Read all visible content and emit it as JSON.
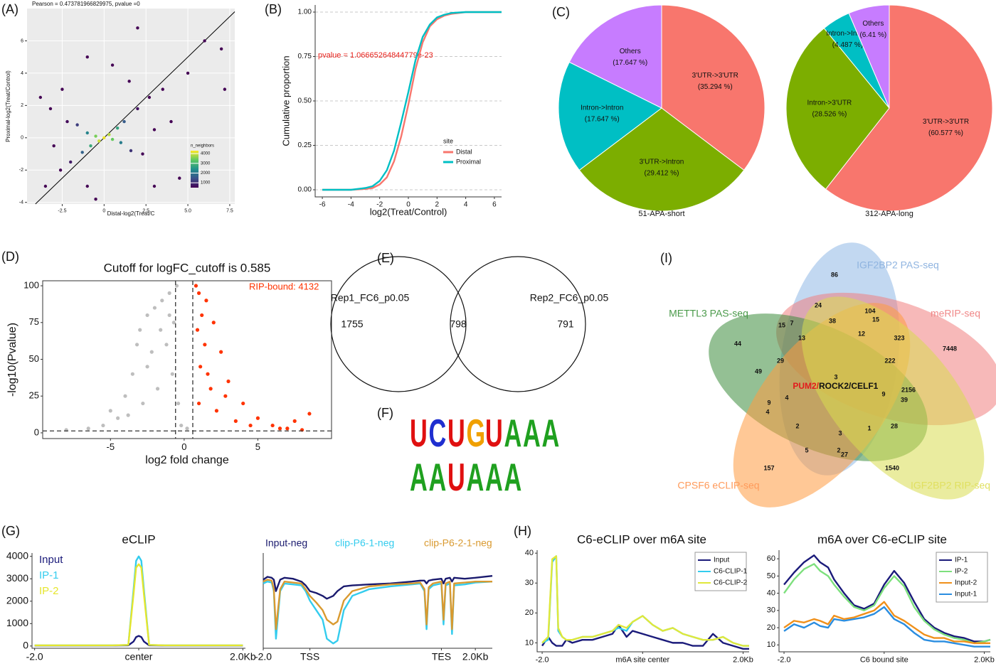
{
  "chart_data": [
    {
      "type": "scatter",
      "panel": "(A)",
      "title": "Pearson = 0.473781966829975, pvalue =0",
      "xlabel": "Distal-log2(Treat/C",
      "ylabel": "Proximal-log2(Treat/Control)",
      "x": [
        0,
        -0.3,
        0.3,
        -0.5,
        0.5,
        -0.8,
        0.8,
        -1,
        1,
        -1.3,
        1.2,
        -1.6,
        1.6,
        -2,
        2,
        -2.2,
        2.3,
        -2.6,
        2.7,
        3,
        -3,
        3.5,
        -3.2,
        1.5,
        -1,
        4,
        -3.5,
        5,
        0.5,
        -0.5,
        6,
        7,
        7.2,
        5.5,
        -3.8,
        2,
        -1,
        4.5,
        3,
        -2.5
      ],
      "values": [
        0,
        -0.2,
        0.2,
        0.1,
        -0.1,
        -0.5,
        0.6,
        0.3,
        -0.3,
        -0.9,
        1,
        0.8,
        -0.8,
        -1.5,
        1.8,
        1,
        -1,
        -2,
        2.5,
        0.5,
        -0.5,
        3,
        1.8,
        3.5,
        -3,
        1,
        -3,
        4,
        4.5,
        -3.8,
        6,
        5.5,
        3,
        -1.5,
        2.5,
        6.8,
        5,
        -2.5,
        -3,
        3
      ],
      "density": [
        4200,
        4000,
        3900,
        3500,
        3400,
        2800,
        2700,
        2200,
        2100,
        1700,
        1600,
        1200,
        1100,
        800,
        700,
        600,
        550,
        400,
        380,
        300,
        300,
        200,
        150,
        150,
        120,
        100,
        80,
        50,
        60,
        50,
        10,
        10,
        10,
        10,
        10,
        10,
        10,
        20,
        20,
        40
      ],
      "xlim": [
        -4.6,
        7.8
      ],
      "ylim": [
        -4.1,
        8
      ],
      "xticks": [
        -2.5,
        0,
        2.5,
        {
          "value": 5,
          "label": "5.0"
        },
        7.5
      ],
      "yticks": [
        -4,
        -2,
        0,
        2,
        4,
        6
      ],
      "grid": true,
      "background": "#ebebeb",
      "diagonal": true,
      "colorbar": {
        "title": "n_neighbors",
        "ticks": [
          1000,
          2000,
          3000,
          4000
        ],
        "lim": [
          500,
          4300
        ]
      }
    },
    {
      "type": "line",
      "panel": "(B)",
      "xlabel": "log2(Treat/Control)",
      "ylabel": "Cumulative proportion",
      "annotation": "pvalue = 1.06665264844779e-23",
      "annotation_color": "#e8201a",
      "legend_title": "site",
      "legend": "inside-right",
      "x": [
        -6,
        -4,
        -3,
        -2.5,
        -2,
        -1.5,
        -1,
        -0.5,
        0,
        0.5,
        1,
        1.5,
        2,
        2.5,
        3,
        4,
        6.5
      ],
      "series": [
        {
          "name": "Distal",
          "color": "#f8766d",
          "values": [
            0,
            0,
            0.005,
            0.01,
            0.03,
            0.07,
            0.16,
            0.3,
            0.48,
            0.68,
            0.83,
            0.92,
            0.96,
            0.98,
            0.99,
            1,
            1
          ]
        },
        {
          "name": "Proximal",
          "color": "#00bfc4",
          "values": [
            0,
            0,
            0.01,
            0.02,
            0.05,
            0.11,
            0.22,
            0.38,
            0.55,
            0.73,
            0.86,
            0.93,
            0.97,
            0.985,
            0.995,
            1,
            1
          ]
        }
      ],
      "xlim": [
        -6.5,
        6.5
      ],
      "ylim": [
        -0.04,
        1.04
      ],
      "xticks": [
        -6,
        -4,
        -2,
        0,
        2,
        4,
        6
      ],
      "yticks": [
        {
          "value": 0,
          "label": "0.00"
        },
        {
          "value": 0.25,
          "label": "0.25"
        },
        {
          "value": 0.5,
          "label": "0.50"
        },
        {
          "value": 0.75,
          "label": "0.75"
        },
        {
          "value": 1,
          "label": "1.00"
        }
      ],
      "grid": "y"
    },
    {
      "type": "pie",
      "panel": "(C)",
      "title": "51-APA-short",
      "categories": [
        "3'UTR->3'UTR",
        "3'UTR->Intron",
        "Intron->Intron",
        "Others"
      ],
      "values": [
        35.294,
        29.412,
        17.647,
        17.647
      ],
      "value_labels": [
        "(35.294 %)",
        "(29.412 %)",
        "(17.647 %)",
        "(17.647 %)"
      ],
      "colors": [
        "#f8766d",
        "#7cae00",
        "#00bfc4",
        "#c77cff"
      ]
    },
    {
      "type": "pie",
      "title": "312-APA-long",
      "categories": [
        "3'UTR->3'UTR",
        "Intron->3'UTR",
        "Intron->Intron",
        "Others"
      ],
      "values": [
        60.577,
        28.526,
        4.487,
        6.41
      ],
      "value_labels": [
        "(60.577 %)",
        "(28.526 %)",
        "(4.487 %)",
        "(6.41 %)"
      ],
      "colors": [
        "#f8766d",
        "#7cae00",
        "#00bfc4",
        "#c77cff"
      ]
    },
    {
      "type": "scatter",
      "panel": "(D)",
      "title": "Cutoff for logFC_cutoff is 0.585",
      "xlabel": "log2 fold change",
      "ylabel": "-log10(Pvalue)",
      "annotation": "RIP-bound: 4132",
      "annotation_color": "#ff3300",
      "series": [
        {
          "color": "#bebebe",
          "x": [
            -0.5,
            -1,
            -1.5,
            -2,
            -2.5,
            -3,
            -1.2,
            -2.2,
            -3.5,
            -4,
            -0.8,
            -1.8,
            -2.8,
            -4.5,
            -5.5,
            -6.5,
            -8,
            -3.2,
            -1,
            -0.4,
            -0.2,
            0.2,
            -2.5,
            -1.6,
            -0.7,
            -3.8,
            -5
          ],
          "values": [
            100,
            95,
            90,
            85,
            80,
            70,
            60,
            55,
            40,
            25,
            40,
            30,
            20,
            10,
            5,
            3,
            2,
            60,
            80,
            20,
            5,
            3,
            45,
            70,
            75,
            12,
            15
          ]
        },
        {
          "color": "#ff3300",
          "x": [
            0.8,
            1,
            1.5,
            1.2,
            2,
            1.4,
            2.5,
            1.1,
            3,
            1.8,
            4,
            2.2,
            5,
            6,
            7,
            8,
            8.5,
            3.5,
            0.9,
            1.6,
            2.8,
            4.5,
            6.5,
            1,
            7.5
          ],
          "values": [
            100,
            95,
            90,
            80,
            75,
            60,
            55,
            45,
            35,
            30,
            20,
            15,
            10,
            5,
            3,
            2,
            13,
            8,
            70,
            40,
            25,
            5,
            3,
            20,
            8
          ]
        }
      ],
      "xlim": [
        -9.6,
        10
      ],
      "ylim": [
        -3.9,
        103.4
      ],
      "xticks": [
        -5,
        0,
        5
      ],
      "yticks": [
        0,
        25,
        50,
        75,
        100
      ],
      "grid": false,
      "frame": true,
      "vlines": [
        -0.585,
        0.585
      ],
      "hline": 1.3
    },
    {
      "type": "venn",
      "panel": "(E)",
      "sets": [
        "Rep1_FC6_p0.05",
        "Rep2_FC6_p0.05"
      ],
      "regions": [
        1755,
        798,
        791
      ]
    },
    {
      "type": "logo",
      "panel": "(F)",
      "motifs": [
        [
          "U",
          "C",
          "U",
          "G",
          "U",
          "A",
          "A",
          "A"
        ],
        [
          "A",
          "A",
          "U",
          "A",
          "A",
          "A"
        ]
      ],
      "colors": {
        "A": "#1fa01f",
        "C": "#1f2fd0",
        "G": "#f0a000",
        "U": "#e01010"
      }
    },
    {
      "type": "venn",
      "panel": "(I)",
      "sets": [
        "IGF2BP2 PAS-seq",
        "meRIP-seq",
        "METTL3 PAS-seq",
        "CPSF6 eCLIP-seq",
        "IGF2BP2 RIP-seq"
      ],
      "set_colors": [
        "#8fb8e6",
        "#f08080",
        "#3c8c3c",
        "#ff9a40",
        "#d8dc50"
      ],
      "label_colors": [
        "#8fb4e0",
        "#f08888",
        "#4a9a4a",
        "#ff9a5a",
        "#e0e060"
      ],
      "regions": [
        86,
        24,
        104,
        15,
        38,
        15,
        7,
        12,
        323,
        7448,
        44,
        13,
        222,
        29,
        49,
        3,
        2156,
        9,
        39,
        4,
        9,
        4,
        2,
        28,
        3,
        1,
        5,
        2,
        27,
        157,
        1540
      ],
      "center_label": [
        "PUM2/",
        "ROCK2/CELF1"
      ],
      "center_colors": [
        "#e31a1c",
        "#111111"
      ]
    },
    {
      "type": "line",
      "panel": "(G)",
      "title": "eCLIP",
      "legend": "text-left",
      "x": [
        -2,
        -1.5,
        -1,
        -0.5,
        -0.2,
        -0.1,
        -0.05,
        0,
        0.05,
        0.1,
        0.2,
        0.5,
        1,
        1.5,
        2
      ],
      "series": [
        {
          "name": "Input",
          "color": "#1a1a7a",
          "values": [
            20,
            20,
            20,
            20,
            30,
            200,
            400,
            450,
            400,
            200,
            30,
            20,
            20,
            20,
            20
          ]
        },
        {
          "name": "IP-1",
          "color": "#33ccee",
          "values": [
            30,
            30,
            30,
            30,
            50,
            2500,
            3800,
            4000,
            3800,
            2500,
            50,
            30,
            30,
            30,
            30
          ]
        },
        {
          "name": "IP-2",
          "color": "#e6e62e",
          "values": [
            30,
            30,
            30,
            30,
            50,
            2300,
            3500,
            3650,
            3500,
            2300,
            50,
            30,
            30,
            30,
            30
          ]
        }
      ],
      "xlim": [
        -2.05,
        2.05
      ],
      "ylim": [
        -100,
        4150
      ],
      "xticks": [
        {
          "value": -2,
          "label": "-2.0"
        },
        {
          "value": 0,
          "label": "center"
        },
        {
          "value": 2,
          "label": "2.0Kb"
        }
      ],
      "yticks": [
        0,
        1000,
        2000,
        3000,
        4000
      ]
    },
    {
      "type": "line",
      "legend": "top",
      "x": [
        0,
        2,
        4,
        5,
        6,
        8,
        10,
        14,
        18,
        20,
        22,
        25,
        28,
        30,
        33,
        35,
        38,
        42,
        50,
        60,
        70,
        74,
        76,
        77,
        78,
        80,
        84,
        85,
        86,
        88,
        89,
        90,
        95,
        100,
        108
      ],
      "series": [
        {
          "name": "Input-neg",
          "color": "#1a1a6e",
          "values": [
            72,
            75,
            74,
            72,
            60,
            72,
            74,
            73,
            70,
            66,
            60,
            58,
            55,
            52,
            55,
            60,
            65,
            66,
            67,
            68,
            70,
            71,
            71,
            68,
            71,
            72,
            73,
            68,
            73,
            74,
            70,
            74,
            73,
            74,
            76
          ]
        },
        {
          "name": "clip-P6-1-neg",
          "color": "#33ccee",
          "values": [
            68,
            70,
            69,
            60,
            10,
            60,
            68,
            67,
            66,
            60,
            50,
            40,
            30,
            10,
            5,
            8,
            40,
            55,
            62,
            65,
            67,
            68,
            60,
            20,
            62,
            66,
            68,
            25,
            66,
            68,
            15,
            66,
            67,
            69,
            70
          ]
        },
        {
          "name": "clip-P6-2-1-neg",
          "color": "#d99a30",
          "values": [
            70,
            72,
            71,
            62,
            20,
            62,
            70,
            69,
            68,
            62,
            55,
            48,
            40,
            30,
            25,
            28,
            50,
            60,
            65,
            67,
            68,
            69,
            62,
            25,
            64,
            68,
            70,
            30,
            68,
            70,
            20,
            68,
            69,
            70,
            70
          ]
        }
      ],
      "xlim": [
        0,
        108
      ],
      "ylim": [
        0,
        100
      ],
      "xticks": [
        {
          "value": 0,
          "label": "-2.0"
        },
        {
          "value": 22,
          "label": "TSS"
        },
        {
          "value": 84,
          "label": "TES"
        },
        {
          "value": 100,
          "label": "2.0Kb"
        }
      ]
    },
    {
      "type": "line",
      "panel": "(H)",
      "title": "C6-eCLIP over m6A site",
      "legend": "box-right",
      "x": [
        0,
        3,
        5,
        7,
        8,
        10,
        12,
        15,
        20,
        25,
        30,
        35,
        38,
        42,
        45,
        50,
        55,
        60,
        65,
        70,
        75,
        80,
        85,
        90,
        95,
        100,
        103
      ],
      "series": [
        {
          "name": "Input",
          "color": "#1a1a7a",
          "values": [
            9,
            12,
            10,
            9,
            9,
            9,
            11,
            10,
            11,
            11,
            12,
            13,
            16,
            12,
            14,
            13,
            12,
            11,
            10,
            10,
            9,
            9,
            13,
            10,
            9,
            8,
            8
          ]
        },
        {
          "name": "C6-CLIP-1",
          "color": "#33ccee",
          "values": [
            10,
            11,
            37,
            39,
            14,
            12,
            11,
            11,
            12,
            12,
            13,
            14,
            15,
            14,
            17,
            19,
            16,
            14,
            15,
            13,
            12,
            11,
            11,
            12,
            10,
            9,
            9
          ]
        },
        {
          "name": "C6-CLIP-2",
          "color": "#e0e83a",
          "values": [
            10,
            12,
            38,
            39,
            15,
            12,
            11,
            11,
            12,
            12,
            13,
            14,
            16,
            15,
            17,
            19,
            16,
            14,
            15,
            13,
            12,
            11,
            11,
            12,
            10,
            9,
            9
          ]
        }
      ],
      "xlim": [
        -2.5,
        103
      ],
      "ylim": [
        7,
        41
      ],
      "xticks": [
        {
          "value": 0,
          "label": "-2.0"
        },
        {
          "value": 50,
          "label": "m6A site center"
        },
        {
          "value": 100,
          "label": "2.0Kb"
        }
      ],
      "yticks": [
        10,
        20,
        30,
        40
      ]
    },
    {
      "type": "line",
      "title": "m6A over C6-eCLIP site",
      "legend": "box-right",
      "x": [
        0,
        5,
        10,
        15,
        18,
        22,
        25,
        30,
        35,
        40,
        45,
        50,
        55,
        60,
        65,
        70,
        75,
        80,
        85,
        90,
        95,
        100,
        103
      ],
      "series": [
        {
          "name": "IP-1",
          "color": "#1a1a7a",
          "values": [
            45,
            52,
            58,
            62,
            58,
            55,
            48,
            40,
            33,
            31,
            34,
            45,
            53,
            46,
            35,
            25,
            20,
            17,
            15,
            14,
            12,
            12,
            13
          ]
        },
        {
          "name": "IP-2",
          "color": "#7de07d",
          "values": [
            40,
            48,
            54,
            57,
            53,
            50,
            45,
            38,
            32,
            30,
            33,
            43,
            50,
            44,
            32,
            24,
            19,
            16,
            14,
            13,
            11,
            12,
            13
          ]
        },
        {
          "name": "Input-2",
          "color": "#f0901a",
          "values": [
            20,
            24,
            23,
            25,
            24,
            22,
            27,
            25,
            26,
            28,
            30,
            35,
            27,
            24,
            20,
            16,
            14,
            14,
            12,
            12,
            11,
            11,
            11
          ]
        },
        {
          "name": "Input-1",
          "color": "#2a8de0",
          "values": [
            18,
            22,
            20,
            23,
            21,
            20,
            25,
            24,
            25,
            26,
            28,
            32,
            25,
            22,
            17,
            13,
            12,
            12,
            11,
            10,
            9,
            9,
            9
          ]
        }
      ],
      "xlim": [
        -2.5,
        103
      ],
      "ylim": [
        6,
        65
      ],
      "xticks": [
        {
          "value": 0,
          "label": "-2.0"
        },
        {
          "value": 50,
          "label": "C6 bound site"
        },
        {
          "value": 100,
          "label": "2.0Kb"
        }
      ],
      "yticks": [
        10,
        20,
        30,
        40,
        50,
        60
      ]
    }
  ]
}
